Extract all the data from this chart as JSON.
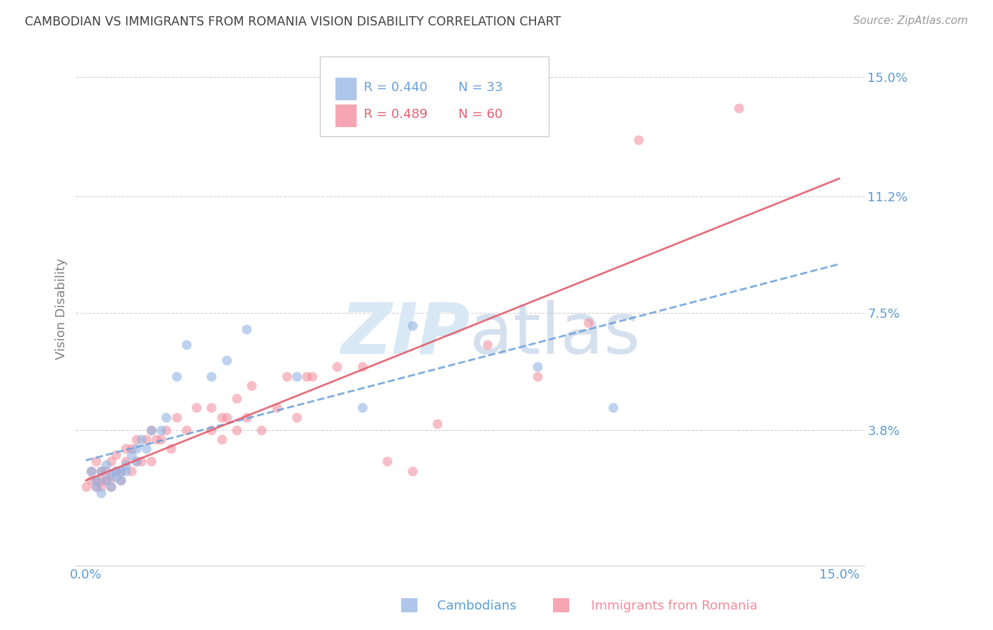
{
  "title": "CAMBODIAN VS IMMIGRANTS FROM ROMANIA VISION DISABILITY CORRELATION CHART",
  "source": "Source: ZipAtlas.com",
  "ylabel": "Vision Disability",
  "xlabel_cambodians": "Cambodians",
  "xlabel_romania": "Immigrants from Romania",
  "xlim": [
    -0.002,
    0.155
  ],
  "ylim": [
    -0.005,
    0.158
  ],
  "ytick_labels": [
    "15.0%",
    "11.2%",
    "7.5%",
    "3.8%"
  ],
  "ytick_values": [
    0.15,
    0.112,
    0.075,
    0.038
  ],
  "xtick_labels": [
    "0.0%",
    "15.0%"
  ],
  "xtick_values": [
    0.0,
    0.15
  ],
  "legend_r_cambodian": "R = 0.440",
  "legend_n_cambodian": "N = 33",
  "legend_r_romania": "R = 0.489",
  "legend_n_romania": "N = 60",
  "cambodian_color": "#92b4e3",
  "romania_color": "#f4899a",
  "trendline_cambodian_color": "#6a9fd8",
  "trendline_romania_color": "#e06070",
  "axis_label_color": "#5b9bd5",
  "title_color": "#404040",
  "watermark_color": "#d8e8f5",
  "background_color": "#ffffff",
  "grid_color": "#d0d0d0",
  "cambodian_x": [
    0.001,
    0.002,
    0.002,
    0.003,
    0.003,
    0.004,
    0.004,
    0.005,
    0.005,
    0.006,
    0.006,
    0.007,
    0.007,
    0.008,
    0.008,
    0.009,
    0.01,
    0.01,
    0.011,
    0.012,
    0.013,
    0.015,
    0.016,
    0.018,
    0.02,
    0.025,
    0.028,
    0.032,
    0.042,
    0.055,
    0.065,
    0.09,
    0.105
  ],
  "cambodian_y": [
    0.025,
    0.02,
    0.022,
    0.025,
    0.018,
    0.022,
    0.027,
    0.02,
    0.024,
    0.025,
    0.023,
    0.025,
    0.022,
    0.027,
    0.025,
    0.03,
    0.032,
    0.028,
    0.035,
    0.032,
    0.038,
    0.038,
    0.042,
    0.055,
    0.065,
    0.055,
    0.06,
    0.07,
    0.055,
    0.045,
    0.071,
    0.058,
    0.045
  ],
  "romania_x": [
    0.0,
    0.001,
    0.001,
    0.002,
    0.002,
    0.002,
    0.003,
    0.003,
    0.003,
    0.004,
    0.004,
    0.005,
    0.005,
    0.005,
    0.006,
    0.006,
    0.007,
    0.007,
    0.008,
    0.008,
    0.009,
    0.009,
    0.01,
    0.01,
    0.011,
    0.012,
    0.013,
    0.013,
    0.014,
    0.015,
    0.016,
    0.017,
    0.018,
    0.02,
    0.022,
    0.025,
    0.025,
    0.027,
    0.027,
    0.028,
    0.03,
    0.03,
    0.032,
    0.033,
    0.035,
    0.038,
    0.04,
    0.042,
    0.044,
    0.045,
    0.05,
    0.055,
    0.06,
    0.065,
    0.07,
    0.08,
    0.09,
    0.1,
    0.11,
    0.13
  ],
  "romania_y": [
    0.02,
    0.022,
    0.025,
    0.02,
    0.022,
    0.028,
    0.02,
    0.022,
    0.025,
    0.022,
    0.025,
    0.02,
    0.023,
    0.028,
    0.025,
    0.03,
    0.022,
    0.025,
    0.032,
    0.028,
    0.025,
    0.032,
    0.028,
    0.035,
    0.028,
    0.035,
    0.028,
    0.038,
    0.035,
    0.035,
    0.038,
    0.032,
    0.042,
    0.038,
    0.045,
    0.038,
    0.045,
    0.035,
    0.042,
    0.042,
    0.038,
    0.048,
    0.042,
    0.052,
    0.038,
    0.045,
    0.055,
    0.042,
    0.055,
    0.055,
    0.058,
    0.058,
    0.028,
    0.025,
    0.04,
    0.065,
    0.055,
    0.072,
    0.13,
    0.14
  ]
}
